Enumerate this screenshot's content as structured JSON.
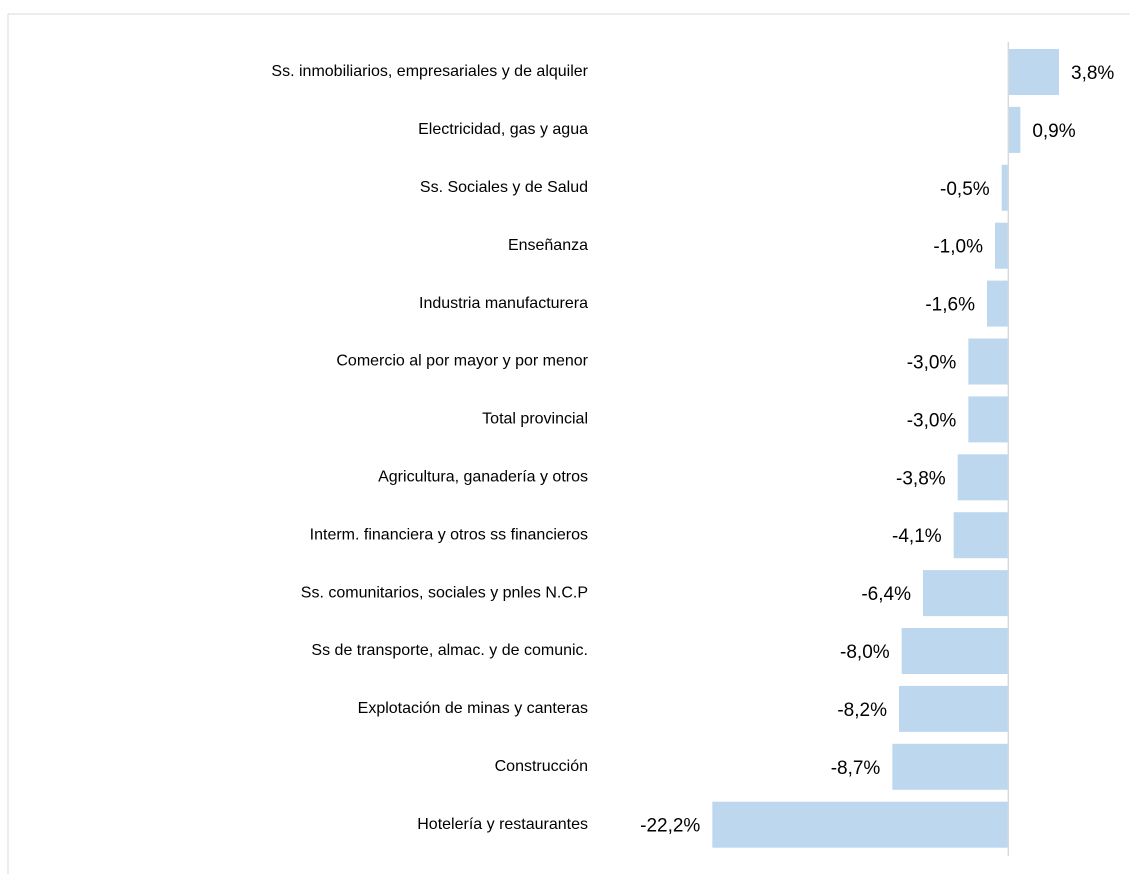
{
  "chart_data": {
    "type": "bar",
    "orientation": "horizontal",
    "categories": [
      "Ss. inmobiliarios, empresariales y de alquiler",
      "Electricidad, gas y agua",
      "Ss. Sociales y de Salud",
      "Enseñanza",
      "Industria manufacturera",
      "Comercio al por mayor y por menor",
      "Total provincial",
      "Agricultura, ganadería y otros",
      "Interm. financiera y otros ss financieros",
      "Ss. comunitarios, sociales y pnles N.C.P",
      "Ss de transporte, almac. y de comunic.",
      "Explotación de minas y canteras",
      "Construcción",
      "Hotelería y restaurantes"
    ],
    "values": [
      3.8,
      0.9,
      -0.5,
      -1.0,
      -1.6,
      -3.0,
      -3.0,
      -3.8,
      -4.1,
      -6.4,
      -8.0,
      -8.2,
      -8.7,
      -22.2
    ],
    "value_labels": [
      "3,8%",
      "0,9%",
      "-0,5%",
      "-1,0%",
      "-1,6%",
      "-3,0%",
      "-3,0%",
      "-3,8%",
      "-4,1%",
      "-6,4%",
      "-8,0%",
      "-8,2%",
      "-8,7%",
      "-22,2%"
    ],
    "color": "#bdd7ee",
    "xlim": [
      -25,
      5
    ]
  }
}
